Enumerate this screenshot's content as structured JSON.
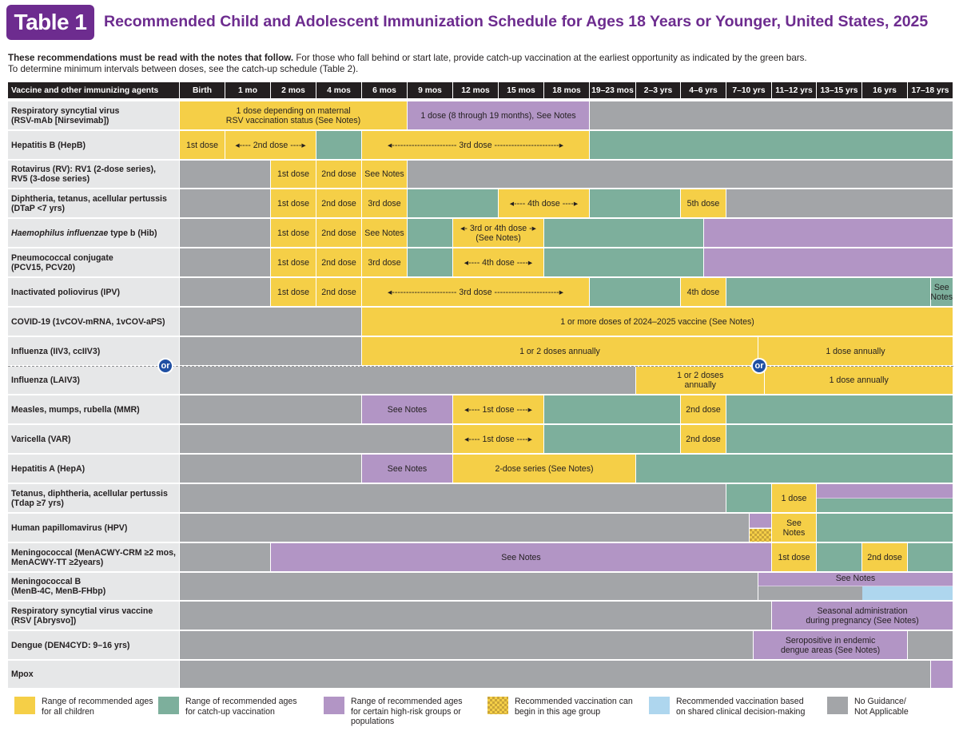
{
  "header": {
    "badge": "Table 1",
    "title": "Recommended Child and Adolescent Immunization Schedule for Ages 18 Years or Younger, United States, 2025"
  },
  "intro": {
    "bold_text": "These recommendations must be read with the notes that follow.",
    "text1": " For those who fall behind or start late, provide catch-up vaccination at the earliest opportunity as indicated by the green bars.",
    "text2": "To determine minimum intervals between doses, see the catch-up schedule (Table 2)."
  },
  "columns": [
    "Vaccine and other immunizing agents",
    "Birth",
    "1 mo",
    "2 mos",
    "4 mos",
    "6 mos",
    "9 mos",
    "12 mos",
    "15 mos",
    "18 mos",
    "19–23 mos",
    "2–3 yrs",
    "4–6 yrs",
    "7–10 yrs",
    "11–12 yrs",
    "13–15 yrs",
    "16 yrs",
    "17–18 yrs"
  ],
  "colors": {
    "yellow": "#f5cf47",
    "green": "#7daf9c",
    "purple": "#b295c5",
    "gray": "#a3a5a8",
    "blue": "#aed6ee",
    "header_bg": "#231f20",
    "title_purple": "#6d2c8f",
    "or_blue": "#1f4fa3"
  },
  "rows": [
    {
      "label": [
        "Respiratory syncytial virus",
        "(RSV-mAb [Nirsevimab])"
      ],
      "bars": [
        {
          "c0": 0,
          "c1": 5,
          "color": "yellow",
          "text": "1 dose depending on maternal\nRSV vaccination status (See Notes)"
        },
        {
          "c0": 5,
          "c1": 9,
          "color": "purple",
          "text": "1 dose (8 through 19 months), See Notes"
        },
        {
          "c0": 9,
          "c1": 17,
          "color": "gray",
          "text": ""
        }
      ]
    },
    {
      "label": [
        "Hepatitis B (HepB)"
      ],
      "bars": [
        {
          "c0": 0,
          "c1": 1,
          "color": "yellow",
          "text": "1st dose"
        },
        {
          "c0": 1,
          "c1": 3,
          "color": "yellow",
          "text": "◂---- 2nd dose ----▸"
        },
        {
          "c0": 3,
          "c1": 4,
          "color": "green",
          "text": ""
        },
        {
          "c0": 4,
          "c1": 9,
          "color": "yellow",
          "text": "◂----------------------- 3rd dose -----------------------▸"
        },
        {
          "c0": 9,
          "c1": 17,
          "color": "green",
          "text": ""
        }
      ]
    },
    {
      "label": [
        "Rotavirus (RV): RV1 (2-dose series),",
        "RV5 (3-dose series)"
      ],
      "bars": [
        {
          "c0": 0,
          "c1": 2,
          "color": "gray",
          "text": ""
        },
        {
          "c0": 2,
          "c1": 3,
          "color": "yellow",
          "text": "1st dose"
        },
        {
          "c0": 3,
          "c1": 4,
          "color": "yellow",
          "text": "2nd dose"
        },
        {
          "c0": 4,
          "c1": 5,
          "color": "yellow",
          "text": "See Notes"
        },
        {
          "c0": 5,
          "c1": 17,
          "color": "gray",
          "text": ""
        }
      ]
    },
    {
      "label": [
        "Diphtheria, tetanus, acellular pertussis",
        "(DTaP <7 yrs)"
      ],
      "bars": [
        {
          "c0": 0,
          "c1": 2,
          "color": "gray",
          "text": ""
        },
        {
          "c0": 2,
          "c1": 3,
          "color": "yellow",
          "text": "1st dose"
        },
        {
          "c0": 3,
          "c1": 4,
          "color": "yellow",
          "text": "2nd dose"
        },
        {
          "c0": 4,
          "c1": 5,
          "color": "yellow",
          "text": "3rd dose"
        },
        {
          "c0": 5,
          "c1": 7,
          "color": "green",
          "text": ""
        },
        {
          "c0": 7,
          "c1": 9,
          "color": "yellow",
          "text": "◂---- 4th dose ----▸"
        },
        {
          "c0": 9,
          "c1": 11,
          "color": "green",
          "text": ""
        },
        {
          "c0": 11,
          "c1": 12,
          "color": "yellow",
          "text": "5th dose"
        },
        {
          "c0": 12,
          "c1": 17,
          "color": "gray",
          "text": ""
        }
      ]
    },
    {
      "label": [
        "Haemophilus influenzae type b (Hib)"
      ],
      "italic_prefix": "Haemophilus influenzae",
      "bars": [
        {
          "c0": 0,
          "c1": 2,
          "color": "gray",
          "text": ""
        },
        {
          "c0": 2,
          "c1": 3,
          "color": "yellow",
          "text": "1st dose"
        },
        {
          "c0": 3,
          "c1": 4,
          "color": "yellow",
          "text": "2nd dose"
        },
        {
          "c0": 4,
          "c1": 5,
          "color": "yellow",
          "text": "See Notes"
        },
        {
          "c0": 5,
          "c1": 6,
          "color": "green",
          "text": ""
        },
        {
          "c0": 6,
          "c1": 8,
          "color": "yellow",
          "text": "◂- 3rd or 4th dose -▸\n(See Notes)"
        },
        {
          "c0": 8,
          "c1": 11.5,
          "color": "green",
          "text": ""
        },
        {
          "c0": 11.5,
          "c1": 17,
          "color": "purple",
          "text": ""
        }
      ]
    },
    {
      "label": [
        "Pneumococcal conjugate",
        "(PCV15, PCV20)"
      ],
      "bars": [
        {
          "c0": 0,
          "c1": 2,
          "color": "gray",
          "text": ""
        },
        {
          "c0": 2,
          "c1": 3,
          "color": "yellow",
          "text": "1st dose"
        },
        {
          "c0": 3,
          "c1": 4,
          "color": "yellow",
          "text": "2nd dose"
        },
        {
          "c0": 4,
          "c1": 5,
          "color": "yellow",
          "text": "3rd dose"
        },
        {
          "c0": 5,
          "c1": 6,
          "color": "green",
          "text": ""
        },
        {
          "c0": 6,
          "c1": 8,
          "color": "yellow",
          "text": "◂---- 4th dose ----▸"
        },
        {
          "c0": 8,
          "c1": 11.5,
          "color": "green",
          "text": ""
        },
        {
          "c0": 11.5,
          "c1": 17,
          "color": "purple",
          "text": ""
        }
      ]
    },
    {
      "label": [
        "Inactivated poliovirus (IPV)"
      ],
      "bars": [
        {
          "c0": 0,
          "c1": 2,
          "color": "gray",
          "text": ""
        },
        {
          "c0": 2,
          "c1": 3,
          "color": "yellow",
          "text": "1st dose"
        },
        {
          "c0": 3,
          "c1": 4,
          "color": "yellow",
          "text": "2nd dose"
        },
        {
          "c0": 4,
          "c1": 9,
          "color": "yellow",
          "text": "◂----------------------- 3rd dose -----------------------▸"
        },
        {
          "c0": 9,
          "c1": 11,
          "color": "green",
          "text": ""
        },
        {
          "c0": 11,
          "c1": 12,
          "color": "yellow",
          "text": "4th dose"
        },
        {
          "c0": 12,
          "c1": 16.5,
          "color": "green",
          "text": ""
        },
        {
          "c0": 16.5,
          "c1": 17,
          "color": "green",
          "text": "See\nNotes"
        }
      ]
    },
    {
      "label": [
        "COVID-19 (1vCOV-mRNA, 1vCOV-aPS)"
      ],
      "bars": [
        {
          "c0": 0,
          "c1": 4,
          "color": "gray",
          "text": ""
        },
        {
          "c0": 4,
          "c1": 17,
          "color": "yellow",
          "text": "1 or more doses of 2024–2025 vaccine (See Notes)"
        }
      ]
    },
    {
      "label": [
        "Influenza (IIV3, ccIIV3)"
      ],
      "bars": [
        {
          "c0": 0,
          "c1": 4,
          "color": "gray",
          "text": ""
        },
        {
          "c0": 4,
          "c1": 12.7,
          "color": "yellow",
          "text": "1 or 2 doses annually"
        },
        {
          "c0": 12.7,
          "c1": 17,
          "color": "yellow",
          "text": "1 dose annually"
        }
      ]
    },
    {
      "label": [
        "Influenza (LAIV3)"
      ],
      "bars": [
        {
          "c0": 0,
          "c1": 10,
          "color": "gray",
          "text": ""
        },
        {
          "c0": 10,
          "c1": 12.85,
          "color": "yellow",
          "text": "1 or 2 doses\nannually"
        },
        {
          "c0": 12.85,
          "c1": 17,
          "color": "yellow",
          "text": "1 dose annually"
        }
      ]
    },
    {
      "label": [
        "Measles, mumps, rubella (MMR)"
      ],
      "bars": [
        {
          "c0": 0,
          "c1": 4,
          "color": "gray",
          "text": ""
        },
        {
          "c0": 4,
          "c1": 6,
          "color": "purple",
          "text": "See Notes"
        },
        {
          "c0": 6,
          "c1": 8,
          "color": "yellow",
          "text": "◂---- 1st dose ----▸"
        },
        {
          "c0": 8,
          "c1": 11,
          "color": "green",
          "text": ""
        },
        {
          "c0": 11,
          "c1": 12,
          "color": "yellow",
          "text": "2nd dose"
        },
        {
          "c0": 12,
          "c1": 17,
          "color": "green",
          "text": ""
        }
      ]
    },
    {
      "label": [
        "Varicella (VAR)"
      ],
      "bars": [
        {
          "c0": 0,
          "c1": 6,
          "color": "gray",
          "text": ""
        },
        {
          "c0": 6,
          "c1": 8,
          "color": "yellow",
          "text": "◂---- 1st dose ----▸"
        },
        {
          "c0": 8,
          "c1": 11,
          "color": "green",
          "text": ""
        },
        {
          "c0": 11,
          "c1": 12,
          "color": "yellow",
          "text": "2nd dose"
        },
        {
          "c0": 12,
          "c1": 17,
          "color": "green",
          "text": ""
        }
      ]
    },
    {
      "label": [
        "Hepatitis A (HepA)"
      ],
      "bars": [
        {
          "c0": 0,
          "c1": 4,
          "color": "gray",
          "text": ""
        },
        {
          "c0": 4,
          "c1": 6,
          "color": "purple",
          "text": "See Notes"
        },
        {
          "c0": 6,
          "c1": 10,
          "color": "yellow",
          "text": "2-dose series (See Notes)"
        },
        {
          "c0": 10,
          "c1": 17,
          "color": "green",
          "text": ""
        }
      ]
    },
    {
      "label": [
        "Tetanus, diphtheria, acellular pertussis",
        "(Tdap ≥7 yrs)"
      ],
      "bars": [
        {
          "c0": 0,
          "c1": 12,
          "color": "gray",
          "text": ""
        },
        {
          "c0": 12,
          "c1": 13,
          "color": "green",
          "text": ""
        },
        {
          "c0": 13,
          "c1": 14,
          "color": "yellow",
          "text": "1 dose"
        },
        {
          "c0": 14,
          "c1": 17,
          "color": "green",
          "text": "",
          "top_purple": true
        }
      ]
    },
    {
      "label": [
        "Human papillomavirus (HPV)"
      ],
      "bars": [
        {
          "c0": 0,
          "c1": 12.5,
          "color": "gray",
          "text": ""
        },
        {
          "c0": 12.5,
          "c1": 13,
          "color": "purple",
          "text": "",
          "checker_bottom": true
        },
        {
          "c0": 13,
          "c1": 14,
          "color": "yellow",
          "text": "See\nNotes"
        },
        {
          "c0": 14,
          "c1": 17,
          "color": "green",
          "text": ""
        }
      ]
    },
    {
      "label": [
        "Meningococcal (MenACWY-CRM ≥2 mos,",
        "MenACWY-TT ≥2years)"
      ],
      "bars": [
        {
          "c0": 0,
          "c1": 2,
          "color": "gray",
          "text": ""
        },
        {
          "c0": 2,
          "c1": 13,
          "color": "purple",
          "text": "See Notes"
        },
        {
          "c0": 13,
          "c1": 14,
          "color": "yellow",
          "text": "1st dose"
        },
        {
          "c0": 14,
          "c1": 15,
          "color": "green",
          "text": ""
        },
        {
          "c0": 15,
          "c1": 16,
          "color": "yellow",
          "text": "2nd dose"
        },
        {
          "c0": 16,
          "c1": 17,
          "color": "green",
          "text": ""
        }
      ]
    },
    {
      "label": [
        "Meningococcal B",
        "(MenB-4C, MenB-FHbp)"
      ],
      "bars": [
        {
          "c0": 0,
          "c1": 12.7,
          "color": "gray",
          "text": ""
        },
        {
          "c0": 12.7,
          "c1": 17,
          "color": "purple",
          "text": "See Notes",
          "menb": true
        }
      ]
    },
    {
      "label": [
        "Respiratory syncytial virus vaccine",
        "(RSV [Abrysvo])"
      ],
      "bars": [
        {
          "c0": 0,
          "c1": 13,
          "color": "gray",
          "text": ""
        },
        {
          "c0": 13,
          "c1": 17,
          "color": "purple",
          "text": "Seasonal administration\nduring pregnancy (See Notes)"
        }
      ]
    },
    {
      "label": [
        "Dengue (DEN4CYD: 9–16 yrs)"
      ],
      "bars": [
        {
          "c0": 0,
          "c1": 12.6,
          "color": "gray",
          "text": ""
        },
        {
          "c0": 12.6,
          "c1": 16,
          "color": "purple",
          "text": "Seropositive in endemic\ndengue areas (See Notes)"
        },
        {
          "c0": 16,
          "c1": 17,
          "color": "gray",
          "text": ""
        }
      ]
    },
    {
      "label": [
        "Mpox"
      ],
      "bars": [
        {
          "c0": 0,
          "c1": 16.5,
          "color": "gray",
          "text": ""
        },
        {
          "c0": 16.5,
          "c1": 17,
          "color": "purple",
          "text": ""
        }
      ]
    }
  ],
  "or_label": "or",
  "legend": [
    {
      "color": "yellow",
      "text": "Range of recommended ages\nfor all children"
    },
    {
      "color": "green",
      "text": "Range of recommended ages\nfor catch-up vaccination"
    },
    {
      "color": "purple",
      "text": "Range of recommended ages\nfor certain high-risk groups or\npopulations"
    },
    {
      "color": "checker",
      "text": "Recommended vaccination can\nbegin in this age group"
    },
    {
      "color": "blue",
      "text": "Recommended vaccination based\non shared clinical decision-making"
    },
    {
      "color": "gray",
      "text": "No Guidance/\nNot Applicable"
    }
  ]
}
